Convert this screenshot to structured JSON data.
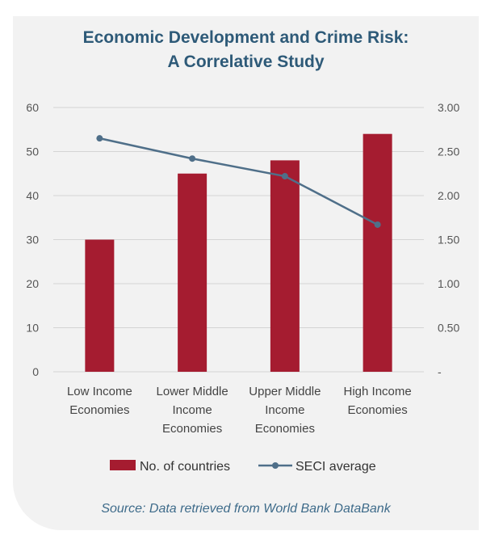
{
  "chart_data": {
    "type": "bar",
    "title": [
      "Economic Development and Crime Risk:",
      "A Correlative Study"
    ],
    "categories": [
      [
        "Low Income",
        "Economies"
      ],
      [
        "Lower Middle",
        "Income",
        "Economies"
      ],
      [
        "Upper Middle",
        "Income",
        "Economies"
      ],
      [
        "High Income",
        "Economies"
      ]
    ],
    "series": [
      {
        "name": "No. of countries",
        "type": "bar",
        "axis": "left",
        "color": "#a51c30",
        "values": [
          30,
          45,
          48,
          54
        ]
      },
      {
        "name": "SECI average",
        "type": "line",
        "axis": "right",
        "color": "#4f6f89",
        "values": [
          2.65,
          2.42,
          2.22,
          1.67
        ]
      }
    ],
    "y_left": {
      "min": 0,
      "max": 60,
      "ticks": [
        "0",
        "10",
        "20",
        "30",
        "40",
        "50",
        "60"
      ]
    },
    "y_right": {
      "min": 0,
      "max": 3.0,
      "ticks": [
        "-",
        "0.50",
        "1.00",
        "1.50",
        "2.00",
        "2.50",
        "3.00"
      ]
    },
    "grid": true,
    "legend_position": "bottom"
  },
  "source": "Source: Data retrieved from World Bank DataBank"
}
